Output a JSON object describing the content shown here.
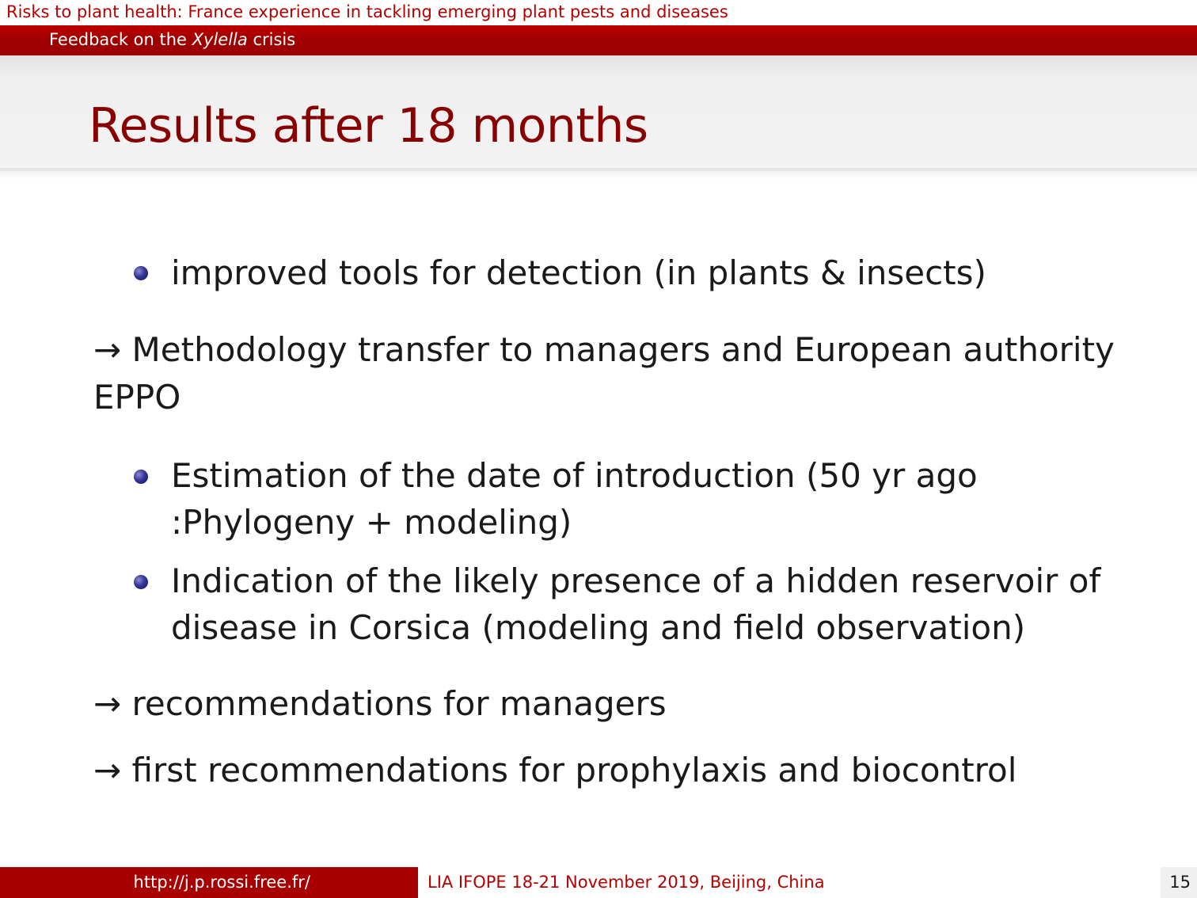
{
  "header": {
    "section": "Risks to plant health: France experience in tackling emerging plant pests and diseases",
    "subsection_prefix": "Feedback on the ",
    "subsection_italic": "Xylella",
    "subsection_suffix": " crisis"
  },
  "frame": {
    "title": "Results after 18 months"
  },
  "content": {
    "bullet1": "improved tools for detection (in plants & insects)",
    "arrow1_line1": "→ Methodology transfer to managers and European authority",
    "arrow1_line2": "EPPO",
    "bullet2_line1": "Estimation of the date of introduction (50 yr ago",
    "bullet2_line2": ":Phylogeny + modeling)",
    "bullet3_line1": "Indication of the likely presence of a hidden reservoir of",
    "bullet3_line2": "disease in Corsica (modeling and field observation)",
    "arrow2": "→ recommendations for managers",
    "arrow3": "→ first recommendations for prophylaxis and biocontrol"
  },
  "footer": {
    "url": "http://j.p.rossi.free.fr/",
    "event": "LIA IFOPE 18-21 November 2019, Beijing, China",
    "page_number": "15"
  },
  "colors": {
    "accent_red": "#a80000",
    "title_red": "#880000",
    "bullet_blue": "#34349a"
  }
}
